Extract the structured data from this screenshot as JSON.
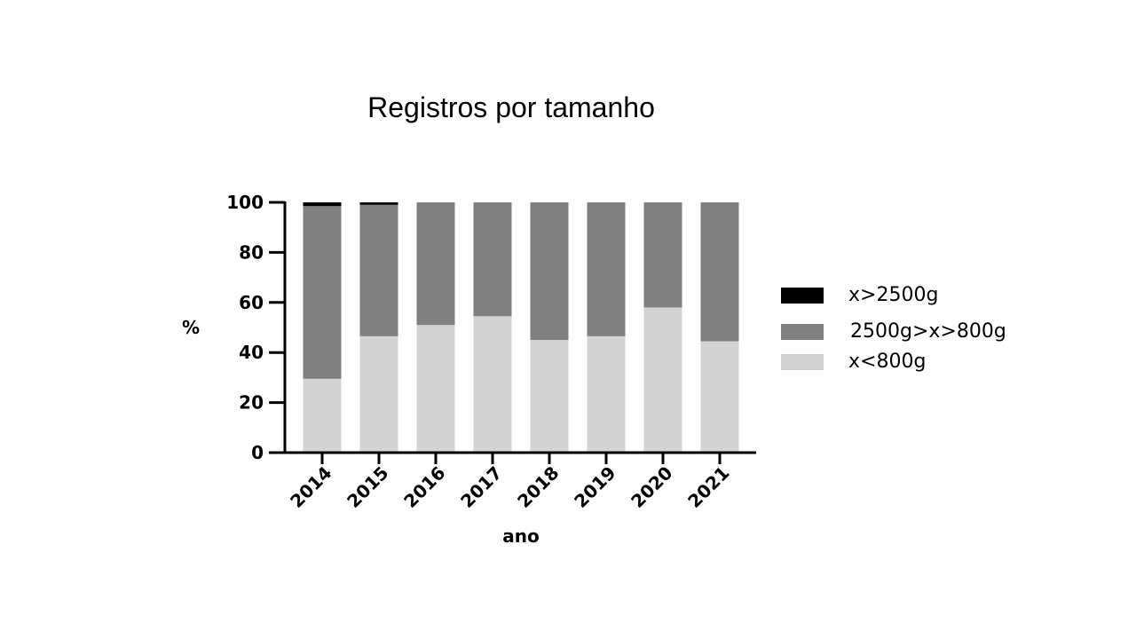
{
  "chart_data": {
    "type": "bar",
    "stacked": true,
    "title": "Registros por tamanho",
    "xlabel": "ano",
    "ylabel": "%",
    "ylim": [
      0,
      100
    ],
    "yticks": [
      "0",
      "20",
      "40",
      "60",
      "80",
      "100"
    ],
    "categories": [
      "2014",
      "2015",
      "2016",
      "2017",
      "2018",
      "2019",
      "2020",
      "2021"
    ],
    "series": [
      {
        "name": "x<800g",
        "color": "#d3d3d3",
        "values": [
          29.5,
          46.5,
          51,
          54.5,
          45,
          46.5,
          58,
          44.5
        ]
      },
      {
        "name": "2500g>x>800g",
        "color": "#808080",
        "values": [
          69,
          52.5,
          49,
          45.5,
          55,
          53.5,
          42,
          55.5
        ]
      },
      {
        "name": "x>2500g",
        "color": "#000000",
        "values": [
          1.5,
          1,
          0,
          0,
          0,
          0,
          0,
          0
        ]
      }
    ],
    "legend": {
      "position": "right",
      "order": [
        "x>2500g",
        "2500g>x>800g",
        "x<800g"
      ]
    }
  }
}
